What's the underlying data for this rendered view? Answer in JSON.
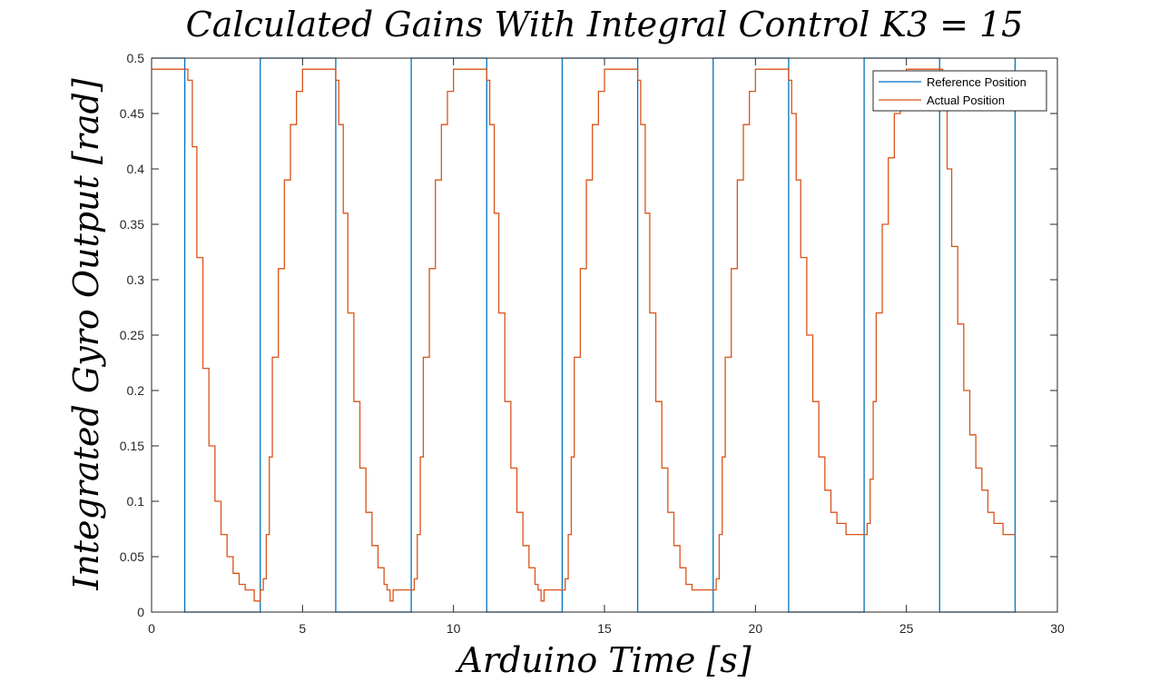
{
  "chart_data": {
    "type": "line",
    "title": "Calculated Gains With Integral Control K3 = 15",
    "xlabel": "Arduino Time [s]",
    "ylabel": "Integrated Gyro Output [rad]",
    "xlim": [
      0,
      30
    ],
    "ylim": [
      0,
      0.5
    ],
    "xticks": [
      0,
      5,
      10,
      15,
      20,
      25,
      30
    ],
    "yticks": [
      0,
      0.05,
      0.1,
      0.15,
      0.2,
      0.25,
      0.3,
      0.35,
      0.4,
      0.45,
      0.5
    ],
    "xtick_labels": [
      "0",
      "5",
      "10",
      "15",
      "20",
      "25",
      "30"
    ],
    "ytick_labels": [
      "0",
      "0.05",
      "0.1",
      "0.15",
      "0.2",
      "0.25",
      "0.3",
      "0.35",
      "0.4",
      "0.45",
      "0.5"
    ],
    "grid": false,
    "legend_position": "top-right",
    "series": [
      {
        "name": "Reference Position",
        "color": "#0072BD",
        "x": [
          0,
          1.1,
          1.1,
          3.6,
          3.6,
          6.1,
          6.1,
          8.6,
          8.6,
          11.1,
          11.1,
          13.6,
          13.6,
          16.1,
          16.1,
          18.6,
          18.6,
          21.1,
          21.1,
          23.6,
          23.6,
          26.1,
          26.1,
          28.6,
          28.6
        ],
        "y": [
          0.5,
          0.5,
          0,
          0,
          0.5,
          0.5,
          0,
          0,
          0.5,
          0.5,
          0,
          0,
          0.5,
          0.5,
          0,
          0,
          0.5,
          0.5,
          0,
          0,
          0.5,
          0.5,
          0,
          0,
          0.5
        ]
      },
      {
        "name": "Actual Position",
        "color": "#D95319",
        "x": [
          0,
          1.1,
          1.2,
          1.35,
          1.5,
          1.7,
          1.9,
          2.1,
          2.3,
          2.5,
          2.7,
          2.9,
          3.1,
          3.3,
          3.4,
          3.6,
          3.7,
          3.8,
          3.9,
          4.0,
          4.2,
          4.4,
          4.6,
          4.8,
          5.0,
          5.3,
          5.6,
          5.9,
          6.1,
          6.2,
          6.35,
          6.5,
          6.7,
          6.9,
          7.1,
          7.3,
          7.5,
          7.7,
          7.8,
          7.9,
          8.0,
          8.6,
          8.7,
          8.8,
          8.9,
          9.0,
          9.2,
          9.4,
          9.6,
          9.8,
          10.0,
          10.3,
          10.6,
          10.9,
          11.1,
          11.2,
          11.35,
          11.5,
          11.7,
          11.9,
          12.1,
          12.3,
          12.5,
          12.7,
          12.8,
          12.9,
          13.0,
          13.6,
          13.7,
          13.8,
          13.9,
          14.0,
          14.2,
          14.4,
          14.6,
          14.8,
          15.0,
          15.3,
          15.6,
          15.9,
          16.1,
          16.2,
          16.35,
          16.5,
          16.7,
          16.9,
          17.1,
          17.3,
          17.5,
          17.7,
          17.9,
          18.6,
          18.7,
          18.8,
          18.9,
          19.0,
          19.2,
          19.4,
          19.6,
          19.8,
          20.0,
          20.3,
          20.6,
          20.9,
          21.1,
          21.2,
          21.35,
          21.5,
          21.7,
          21.9,
          22.1,
          22.3,
          22.5,
          22.7,
          23.0,
          23.3,
          23.6,
          23.7,
          23.8,
          23.9,
          24.0,
          24.2,
          24.4,
          24.6,
          24.8,
          25.0,
          25.3,
          25.6,
          25.9,
          26.1,
          26.2,
          26.35,
          26.5,
          26.7,
          26.9,
          27.1,
          27.3,
          27.5,
          27.7,
          27.9,
          28.2,
          28.6
        ],
        "y": [
          0.49,
          0.49,
          0.48,
          0.42,
          0.32,
          0.22,
          0.15,
          0.1,
          0.07,
          0.05,
          0.035,
          0.025,
          0.02,
          0.02,
          0.01,
          0.02,
          0.03,
          0.07,
          0.14,
          0.23,
          0.31,
          0.39,
          0.44,
          0.47,
          0.49,
          0.49,
          0.49,
          0.49,
          0.48,
          0.44,
          0.36,
          0.27,
          0.19,
          0.13,
          0.09,
          0.06,
          0.04,
          0.025,
          0.02,
          0.01,
          0.02,
          0.02,
          0.03,
          0.07,
          0.14,
          0.23,
          0.31,
          0.39,
          0.44,
          0.47,
          0.49,
          0.49,
          0.49,
          0.49,
          0.48,
          0.44,
          0.36,
          0.27,
          0.19,
          0.13,
          0.09,
          0.06,
          0.04,
          0.025,
          0.02,
          0.01,
          0.02,
          0.02,
          0.03,
          0.07,
          0.14,
          0.23,
          0.31,
          0.39,
          0.44,
          0.47,
          0.49,
          0.49,
          0.49,
          0.49,
          0.48,
          0.44,
          0.36,
          0.27,
          0.19,
          0.13,
          0.09,
          0.06,
          0.04,
          0.025,
          0.02,
          0.02,
          0.03,
          0.07,
          0.14,
          0.23,
          0.31,
          0.39,
          0.44,
          0.47,
          0.49,
          0.49,
          0.49,
          0.49,
          0.48,
          0.45,
          0.39,
          0.32,
          0.25,
          0.19,
          0.14,
          0.11,
          0.09,
          0.08,
          0.07,
          0.07,
          0.07,
          0.08,
          0.12,
          0.19,
          0.27,
          0.35,
          0.41,
          0.45,
          0.47,
          0.49,
          0.49,
          0.49,
          0.49,
          0.49,
          0.46,
          0.4,
          0.33,
          0.26,
          0.2,
          0.16,
          0.13,
          0.11,
          0.09,
          0.08,
          0.07,
          0.07
        ]
      }
    ]
  }
}
